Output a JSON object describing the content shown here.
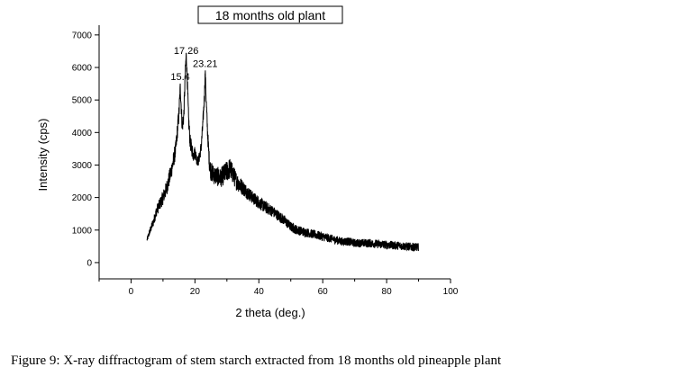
{
  "chart_data": {
    "type": "line",
    "title": "18 months old plant",
    "xlabel": "2 theta (deg.)",
    "ylabel": "Intensity (cps)",
    "xlim": [
      -10,
      100
    ],
    "ylim": [
      -500,
      7300
    ],
    "xticks": [
      0,
      20,
      40,
      60,
      80,
      100
    ],
    "yticks": [
      0,
      1000,
      2000,
      3000,
      4000,
      5000,
      6000,
      7000
    ],
    "grid": false,
    "annotations": [
      {
        "text": "15.4",
        "x": 15.4,
        "y": 5500
      },
      {
        "text": "17.26",
        "x": 17.26,
        "y": 6300
      },
      {
        "text": "23.21",
        "x": 23.21,
        "y": 5900
      }
    ],
    "series": [
      {
        "color": "#000000",
        "x": [
          5,
          6,
          7,
          8,
          9,
          10,
          11,
          12,
          13,
          14,
          15,
          15.4,
          16,
          16.5,
          17,
          17.26,
          17.6,
          18,
          18.5,
          19,
          19.5,
          20,
          20.5,
          21,
          21.5,
          22,
          22.5,
          23,
          23.21,
          23.5,
          24,
          24.5,
          25,
          26,
          27,
          28,
          29,
          30,
          31,
          32,
          33,
          34,
          35,
          36,
          38,
          40,
          42,
          44,
          46,
          48,
          50,
          52,
          54,
          56,
          58,
          60,
          62,
          64,
          66,
          68,
          70,
          72,
          74,
          76,
          78,
          80,
          82,
          84,
          86,
          88,
          90
        ],
        "y": [
          700,
          1000,
          1250,
          1600,
          1800,
          2000,
          2250,
          2600,
          3000,
          3500,
          4600,
          5400,
          4200,
          4500,
          5900,
          6400,
          5600,
          4400,
          3700,
          3500,
          3300,
          3400,
          3200,
          3100,
          3300,
          3600,
          4300,
          5200,
          5900,
          5000,
          3900,
          3100,
          2800,
          2700,
          2650,
          2600,
          2700,
          2800,
          2900,
          2700,
          2500,
          2400,
          2300,
          2200,
          2000,
          1850,
          1700,
          1600,
          1450,
          1300,
          1100,
          1000,
          950,
          900,
          850,
          800,
          750,
          700,
          650,
          650,
          600,
          600,
          600,
          580,
          560,
          550,
          530,
          520,
          500,
          480,
          470
        ],
        "noise": [
          80,
          100,
          140,
          170,
          190,
          220,
          240,
          260,
          260,
          260,
          260,
          200,
          260,
          260,
          200,
          120,
          200,
          260,
          240,
          220,
          200,
          200,
          180,
          160,
          180,
          200,
          220,
          200,
          120,
          200,
          240,
          260,
          300,
          300,
          300,
          300,
          320,
          330,
          330,
          300,
          280,
          260,
          240,
          220,
          200,
          200,
          190,
          180,
          170,
          160,
          150,
          150,
          140,
          140,
          140,
          140,
          130,
          130,
          130,
          130,
          130,
          130,
          130,
          130,
          130,
          130,
          130,
          130,
          130,
          130,
          130
        ]
      }
    ]
  },
  "caption": "Figure 9:  X-ray diffractogram of stem starch extracted from 18 months old pineapple plant"
}
